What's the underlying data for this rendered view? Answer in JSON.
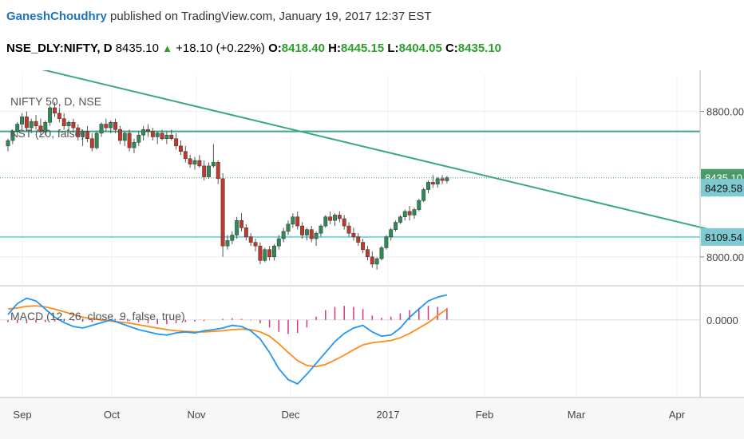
{
  "header": {
    "author": "GaneshChoudhry",
    "published": "published on TradingView.com, January 19, 2017 12:37 EST",
    "symbol": "NSE_DLY:NIFTY, D",
    "last": "8435.10",
    "change": "+18.10 (+0.22%)",
    "o_label": "O:",
    "o_val": "8418.40",
    "h_label": "H:",
    "h_val": "8445.15",
    "l_label": "L:",
    "l_val": "8404.05",
    "c_label": "C:",
    "c_val": "8435.10"
  },
  "overlay": {
    "legend1": "NIFTY 50, D, NSE",
    "legend2": "KST (20, false)",
    "legend3": "MACD (12, 26, close, 9, false, true)"
  },
  "colors": {
    "up": "#2e8b57",
    "down": "#c0392b",
    "trend": "#3aa882",
    "hline_dark": "#3aa882",
    "hline_light": "#7fd3d9",
    "macd": "#2196f3",
    "signal": "#ff8c1a",
    "hist": "#d63384",
    "tag_last": "#4a9a6a",
    "tag_teal": "#7fc9d2"
  },
  "chart_data": [
    {
      "type": "candlestick",
      "yticks": [
        8800.0,
        8000.0
      ],
      "ylim": [
        7850,
        9000
      ],
      "xticks": [
        "Sep",
        "Oct",
        "Nov",
        "Dec",
        "2017",
        "Feb",
        "Mar",
        "Apr"
      ],
      "price_tags": [
        {
          "label": "8435.10",
          "value": 8435.1,
          "style": "last"
        },
        {
          "label": "8429.58",
          "value": 8380,
          "style": "teal"
        },
        {
          "label": "8109.54",
          "value": 8109.54,
          "style": "teal"
        }
      ],
      "hlines": [
        {
          "value": 8690,
          "style": "dark"
        },
        {
          "value": 8435.1,
          "style": "last"
        },
        {
          "value": 8109.54,
          "style": "light"
        }
      ],
      "trendline": {
        "from": {
          "bar": -4,
          "value": 9100
        },
        "to": {
          "bar": 178,
          "value": 7980
        }
      },
      "candles": [
        [
          8610,
          8650,
          8580,
          8640
        ],
        [
          8640,
          8700,
          8620,
          8690
        ],
        [
          8690,
          8740,
          8660,
          8730
        ],
        [
          8730,
          8790,
          8700,
          8770
        ],
        [
          8770,
          8800,
          8690,
          8710
        ],
        [
          8710,
          8760,
          8680,
          8745
        ],
        [
          8745,
          8780,
          8700,
          8720
        ],
        [
          8720,
          8760,
          8670,
          8690
        ],
        [
          8690,
          8750,
          8670,
          8740
        ],
        [
          8740,
          8830,
          8720,
          8820
        ],
        [
          8820,
          8850,
          8770,
          8790
        ],
        [
          8790,
          8820,
          8740,
          8760
        ],
        [
          8760,
          8790,
          8700,
          8720
        ],
        [
          8720,
          8750,
          8690,
          8740
        ],
        [
          8740,
          8760,
          8690,
          8710
        ],
        [
          8710,
          8730,
          8640,
          8660
        ],
        [
          8660,
          8700,
          8610,
          8690
        ],
        [
          8690,
          8720,
          8630,
          8650
        ],
        [
          8650,
          8680,
          8580,
          8600
        ],
        [
          8600,
          8690,
          8590,
          8680
        ],
        [
          8680,
          8740,
          8660,
          8730
        ],
        [
          8730,
          8760,
          8690,
          8710
        ],
        [
          8710,
          8750,
          8680,
          8740
        ],
        [
          8740,
          8760,
          8680,
          8700
        ],
        [
          8700,
          8720,
          8620,
          8640
        ],
        [
          8640,
          8690,
          8610,
          8680
        ],
        [
          8680,
          8700,
          8580,
          8600
        ],
        [
          8600,
          8650,
          8570,
          8630
        ],
        [
          8630,
          8690,
          8610,
          8670
        ],
        [
          8670,
          8720,
          8640,
          8700
        ],
        [
          8700,
          8730,
          8660,
          8690
        ],
        [
          8690,
          8710,
          8640,
          8660
        ],
        [
          8660,
          8690,
          8620,
          8680
        ],
        [
          8680,
          8700,
          8640,
          8650
        ],
        [
          8650,
          8690,
          8620,
          8670
        ],
        [
          8670,
          8700,
          8640,
          8650
        ],
        [
          8650,
          8680,
          8590,
          8610
        ],
        [
          8610,
          8640,
          8560,
          8580
        ],
        [
          8580,
          8610,
          8520,
          8540
        ],
        [
          8540,
          8560,
          8490,
          8510
        ],
        [
          8510,
          8550,
          8480,
          8530
        ],
        [
          8530,
          8560,
          8490,
          8500
        ],
        [
          8500,
          8530,
          8420,
          8440
        ],
        [
          8440,
          8520,
          8430,
          8500
        ],
        [
          8500,
          8620,
          8490,
          8520
        ],
        [
          8520,
          8530,
          8400,
          8430
        ],
        [
          8430,
          8460,
          8000,
          8060
        ],
        [
          8060,
          8120,
          8040,
          8090
        ],
        [
          8090,
          8140,
          8070,
          8120
        ],
        [
          8120,
          8220,
          8100,
          8200
        ],
        [
          8200,
          8240,
          8140,
          8160
        ],
        [
          8160,
          8180,
          8090,
          8110
        ],
        [
          8110,
          8130,
          8060,
          8080
        ],
        [
          8080,
          8100,
          8030,
          8060
        ],
        [
          8060,
          8080,
          7960,
          7980
        ],
        [
          7980,
          8050,
          7970,
          8040
        ],
        [
          8040,
          8060,
          7980,
          8000
        ],
        [
          8000,
          8070,
          7980,
          8060
        ],
        [
          8060,
          8120,
          8040,
          8100
        ],
        [
          8100,
          8160,
          8080,
          8140
        ],
        [
          8140,
          8200,
          8120,
          8180
        ],
        [
          8180,
          8240,
          8160,
          8220
        ],
        [
          8220,
          8250,
          8150,
          8170
        ],
        [
          8170,
          8190,
          8100,
          8120
        ],
        [
          8120,
          8160,
          8090,
          8150
        ],
        [
          8150,
          8170,
          8080,
          8100
        ],
        [
          8100,
          8140,
          8060,
          8130
        ],
        [
          8130,
          8180,
          8110,
          8170
        ],
        [
          8170,
          8230,
          8160,
          8220
        ],
        [
          8220,
          8250,
          8180,
          8200
        ],
        [
          8200,
          8240,
          8170,
          8230
        ],
        [
          8230,
          8250,
          8190,
          8210
        ],
        [
          8210,
          8230,
          8150,
          8170
        ],
        [
          8170,
          8190,
          8110,
          8130
        ],
        [
          8130,
          8160,
          8090,
          8110
        ],
        [
          8110,
          8130,
          8060,
          8080
        ],
        [
          8080,
          8100,
          8020,
          8040
        ],
        [
          8040,
          8060,
          7980,
          8000
        ],
        [
          8000,
          8030,
          7940,
          7960
        ],
        [
          7960,
          8000,
          7930,
          7990
        ],
        [
          7990,
          8060,
          7980,
          8050
        ],
        [
          8050,
          8120,
          8040,
          8110
        ],
        [
          8110,
          8160,
          8090,
          8150
        ],
        [
          8150,
          8200,
          8140,
          8190
        ],
        [
          8190,
          8230,
          8180,
          8220
        ],
        [
          8220,
          8260,
          8200,
          8250
        ],
        [
          8250,
          8280,
          8200,
          8230
        ],
        [
          8230,
          8270,
          8210,
          8260
        ],
        [
          8260,
          8320,
          8250,
          8310
        ],
        [
          8310,
          8380,
          8300,
          8370
        ],
        [
          8370,
          8420,
          8350,
          8410
        ],
        [
          8410,
          8450,
          8380,
          8400
        ],
        [
          8400,
          8440,
          8380,
          8430
        ],
        [
          8430,
          8450,
          8400,
          8420
        ],
        [
          8418.4,
          8445.15,
          8404.05,
          8435.1
        ]
      ]
    },
    {
      "type": "macd",
      "yticks": [
        0.0
      ],
      "ylim": [
        -140,
        60
      ],
      "macd": [
        10,
        30,
        40,
        35,
        20,
        5,
        -5,
        -12,
        -15,
        -10,
        -5,
        0,
        -6,
        -12,
        -18,
        -22,
        -26,
        -28,
        -24,
        -22,
        -24,
        -20,
        -18,
        -15,
        -10,
        -12,
        -20,
        -35,
        -60,
        -90,
        -110,
        -118,
        -100,
        -80,
        -60,
        -40,
        -25,
        -15,
        -10,
        -22,
        -30,
        -28,
        -15,
        5,
        20,
        35,
        42,
        46
      ],
      "signal": [
        20,
        22,
        25,
        26,
        24,
        20,
        15,
        10,
        5,
        2,
        0,
        -2,
        -4,
        -6,
        -9,
        -12,
        -15,
        -18,
        -20,
        -21,
        -22,
        -22,
        -21,
        -20,
        -18,
        -17,
        -18,
        -22,
        -30,
        -44,
        -60,
        -75,
        -84,
        -86,
        -82,
        -74,
        -65,
        -55,
        -46,
        -42,
        -40,
        -38,
        -33,
        -25,
        -15,
        -5,
        8,
        20
      ],
      "hist": [
        -4,
        -6,
        -6,
        -5,
        -4,
        -3,
        -2,
        -2,
        -3,
        -4,
        -2,
        0,
        2,
        -2,
        -4,
        -6,
        -8,
        -8,
        -6,
        -4,
        -3,
        -2,
        0,
        2,
        3,
        2,
        -1,
        -6,
        -14,
        -22,
        -26,
        -24,
        -14,
        6,
        18,
        24,
        26,
        24,
        20,
        8,
        4,
        6,
        12,
        18,
        22,
        26,
        24,
        22
      ]
    }
  ]
}
